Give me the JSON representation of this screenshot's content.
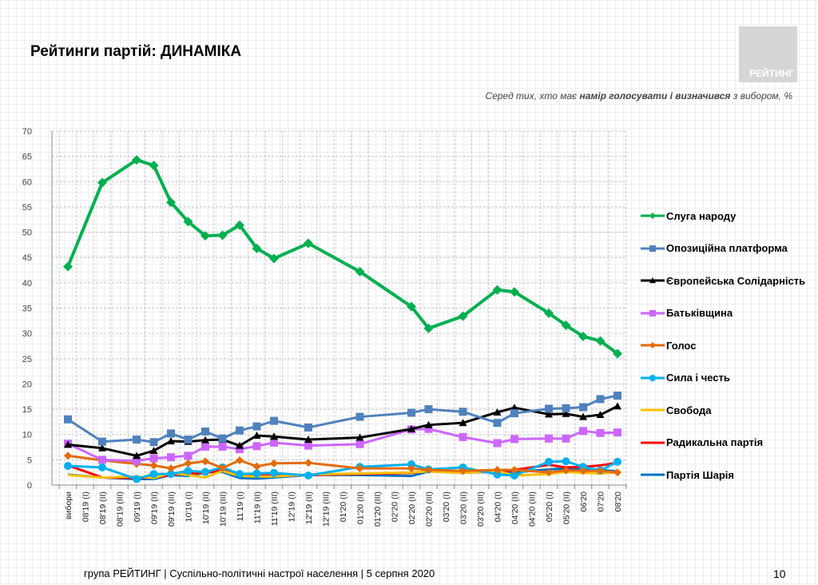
{
  "header": {
    "title": "Рейтинги партій: ДИНАМІКА",
    "logo_text": "РЕЙТИНГ",
    "subtitle_pre": "Серед тих, хто має ",
    "subtitle_bold": "намір голосувати і визначився",
    "subtitle_post": " з вибором, %"
  },
  "footer": {
    "text": "група РЕЙТИНГ | Суспільно-політичні настрої населення  | 5 серпня 2020",
    "page": "10"
  },
  "chart_data": {
    "type": "line",
    "title": "",
    "xlabel": "",
    "ylabel": "",
    "ylim": [
      0,
      70
    ],
    "yticks": [
      0,
      5,
      10,
      15,
      20,
      25,
      30,
      35,
      40,
      45,
      50,
      55,
      60,
      65,
      70
    ],
    "grid": true,
    "legend_position": "right",
    "categories": [
      "вибори",
      "08'19 (I)",
      "08'19 (II)",
      "08'19 (III)",
      "09'19 (I)",
      "09'19 (II)",
      "09'19 (III)",
      "10'19 (I)",
      "10'19 (II)",
      "10'19 (III)",
      "11'19 (I)",
      "11'19 (II)",
      "11'19 (III)",
      "12'19 (I)",
      "12'19 (II)",
      "12'19 (III)",
      "01'20 (I)",
      "01'20 (II)",
      "01'20 (III)",
      "02'20 (I)",
      "02'20 (II)",
      "02'20 (III)",
      "03'20 (I)",
      "03'20 (II)",
      "03'20 (III)",
      "04'20 (I)",
      "04'20 (II)",
      "04'20 (III)",
      "05'20 (I)",
      "05'20 (II)",
      "06'20",
      "07'20",
      "08'20"
    ],
    "series": [
      {
        "name": "Слуга народу",
        "color": "#00b050",
        "marker": "diamond",
        "values": [
          43.2,
          null,
          59.8,
          null,
          64.3,
          63.2,
          55.9,
          52.1,
          49.3,
          49.4,
          51.4,
          46.8,
          44.8,
          null,
          47.8,
          null,
          null,
          42.2,
          null,
          null,
          35.3,
          31.0,
          null,
          33.4,
          null,
          38.6,
          38.2,
          null,
          34.0,
          31.6,
          29.4,
          28.5,
          26.0
        ]
      },
      {
        "name": "Опозиційна платформа",
        "color": "#4f81bd",
        "marker": "square",
        "values": [
          13.0,
          null,
          8.6,
          null,
          9.0,
          8.5,
          10.2,
          9.0,
          10.6,
          9.2,
          10.8,
          11.6,
          12.7,
          null,
          11.4,
          null,
          null,
          13.5,
          null,
          null,
          14.3,
          15.0,
          null,
          14.5,
          null,
          12.3,
          14.2,
          null,
          15.1,
          15.2,
          15.4,
          17.0,
          17.7
        ]
      },
      {
        "name": "Європейська Солідарність",
        "color": "#000000",
        "marker": "triangle",
        "values": [
          8.0,
          null,
          7.3,
          null,
          5.8,
          6.8,
          8.7,
          8.6,
          8.9,
          9.0,
          7.8,
          9.8,
          9.6,
          null,
          9.0,
          null,
          null,
          9.4,
          null,
          null,
          11.1,
          11.9,
          null,
          12.3,
          null,
          14.4,
          15.3,
          null,
          14.0,
          14.1,
          13.5,
          13.9,
          15.6
        ]
      },
      {
        "name": "Батьківщина",
        "color": "#cc66ff",
        "marker": "square",
        "values": [
          8.2,
          null,
          5.0,
          null,
          4.8,
          5.3,
          5.5,
          5.8,
          7.6,
          7.6,
          7.1,
          7.7,
          8.4,
          null,
          7.8,
          null,
          null,
          8.1,
          null,
          null,
          11.0,
          11.1,
          null,
          9.5,
          null,
          8.3,
          9.1,
          null,
          9.2,
          9.2,
          10.7,
          10.3,
          10.4
        ]
      },
      {
        "name": "Голос",
        "color": "#e36c09",
        "marker": "diamond",
        "values": [
          5.8,
          null,
          4.9,
          null,
          4.2,
          3.9,
          3.3,
          4.3,
          4.7,
          3.4,
          4.9,
          3.7,
          4.3,
          null,
          4.4,
          null,
          null,
          3.3,
          null,
          null,
          3.3,
          3.0,
          null,
          2.8,
          null,
          3.0,
          3.0,
          null,
          2.5,
          2.9,
          2.8,
          2.8,
          2.5
        ]
      },
      {
        "name": "Сила і честь",
        "color": "#00b0f0",
        "marker": "circle",
        "values": [
          3.8,
          null,
          3.5,
          null,
          1.2,
          2.2,
          2.2,
          2.8,
          2.6,
          3.5,
          2.2,
          2.3,
          2.4,
          null,
          1.9,
          null,
          null,
          3.6,
          null,
          null,
          4.1,
          3.1,
          null,
          3.5,
          null,
          2.1,
          1.9,
          null,
          4.6,
          4.7,
          3.6,
          2.9,
          4.6
        ]
      },
      {
        "name": "Свобода",
        "color": "#ffc000",
        "marker": "none",
        "values": [
          2.0,
          null,
          1.5,
          null,
          1.7,
          1.4,
          2.4,
          2.0,
          1.5,
          2.8,
          1.8,
          1.7,
          1.7,
          null,
          2.1,
          null,
          null,
          2.3,
          null,
          null,
          2.5,
          2.7,
          null,
          2.4,
          null,
          2.8,
          1.9,
          null,
          2.2,
          2.6,
          2.4,
          2.3,
          2.5
        ]
      },
      {
        "name": "Радикальна партія",
        "color": "#ff0000",
        "marker": "none",
        "values": [
          3.9,
          null,
          1.5,
          null,
          1.4,
          1.5,
          2.0,
          2.3,
          2.4,
          3.0,
          1.8,
          1.9,
          1.9,
          null,
          2.0,
          null,
          null,
          2.2,
          null,
          null,
          2.4,
          2.8,
          null,
          2.7,
          null,
          2.5,
          3.0,
          null,
          4.0,
          3.5,
          3.6,
          3.9,
          4.4
        ]
      },
      {
        "name": "Партія Шарія",
        "color": "#0070c0",
        "marker": "none",
        "values": [
          2.1,
          null,
          1.5,
          null,
          1.2,
          1.2,
          2.0,
          1.8,
          2.5,
          2.6,
          1.4,
          1.3,
          1.5,
          null,
          2.0,
          null,
          null,
          2.0,
          null,
          null,
          1.8,
          2.7,
          null,
          2.4,
          null,
          2.7,
          2.5,
          null,
          3.1,
          3.3,
          3.1,
          3.0,
          2.7
        ]
      }
    ]
  }
}
